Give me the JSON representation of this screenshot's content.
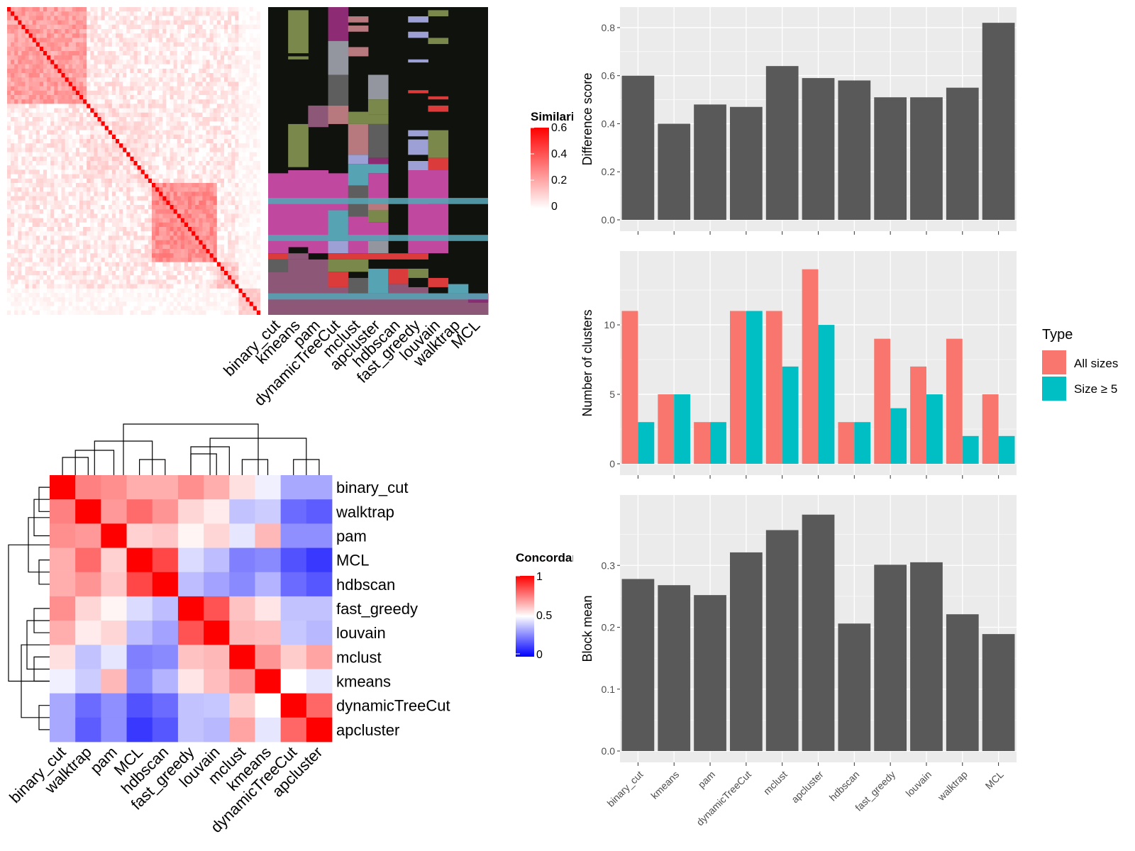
{
  "colors": {
    "panel_bg": "#ebebeb",
    "grid": "#ffffff",
    "bar": "#595959",
    "all_sizes": "#f8766d",
    "size_ge5": "#00bfc4",
    "sim_high": "#ff0000",
    "sim_low": "#ffffff",
    "conc_high": "#ff0000",
    "conc_mid": "#ffffff",
    "conc_low": "#0000ff",
    "cluster_bg": "#10120e"
  },
  "similarity_heatmap": {
    "legend_title": "Similarity",
    "legend_ticks": [
      "0.6",
      "0.4",
      "0.2",
      "0"
    ],
    "n": 70
  },
  "cluster_matrix": {
    "methods": [
      "binary_cut",
      "kmeans",
      "pam",
      "dynamicTreeCut",
      "mclust",
      "apcluster",
      "hdbscan",
      "fast_greedy",
      "louvain",
      "walktrap",
      "MCL"
    ],
    "palette": [
      "#c0489e",
      "#7b884b",
      "#8d5877",
      "#dc3b3b",
      "#93959f",
      "#5e5e5e",
      "#9ca0d4",
      "#56a3b4",
      "#b8797e",
      "#67557a",
      "#8d2c74"
    ]
  },
  "concordance_heatmap": {
    "legend_title": "Concordance",
    "legend_ticks": [
      "1",
      "0.5",
      "0"
    ],
    "row_labels": [
      "binary_cut",
      "walktrap",
      "pam",
      "MCL",
      "hdbscan",
      "fast_greedy",
      "louvain",
      "mclust",
      "kmeans",
      "dynamicTreeCut",
      "apcluster"
    ],
    "col_labels": [
      "binary_cut",
      "walktrap",
      "pam",
      "MCL",
      "hdbscan",
      "fast_greedy",
      "louvain",
      "mclust",
      "kmeans",
      "dynamicTreeCut",
      "apcluster"
    ],
    "values": [
      [
        1.0,
        0.75,
        0.72,
        0.66,
        0.66,
        0.72,
        0.66,
        0.56,
        0.47,
        0.33,
        0.33
      ],
      [
        0.75,
        1.0,
        0.7,
        0.79,
        0.71,
        0.58,
        0.54,
        0.38,
        0.4,
        0.21,
        0.18
      ],
      [
        0.72,
        0.7,
        1.0,
        0.59,
        0.61,
        0.52,
        0.58,
        0.45,
        0.64,
        0.28,
        0.28
      ],
      [
        0.66,
        0.79,
        0.59,
        1.0,
        0.86,
        0.43,
        0.37,
        0.25,
        0.27,
        0.16,
        0.11
      ],
      [
        0.66,
        0.71,
        0.61,
        0.86,
        1.0,
        0.37,
        0.32,
        0.27,
        0.35,
        0.21,
        0.17
      ],
      [
        0.72,
        0.58,
        0.52,
        0.43,
        0.37,
        1.0,
        0.84,
        0.62,
        0.55,
        0.38,
        0.38
      ],
      [
        0.66,
        0.54,
        0.58,
        0.37,
        0.32,
        0.84,
        1.0,
        0.64,
        0.63,
        0.39,
        0.36
      ],
      [
        0.56,
        0.38,
        0.45,
        0.25,
        0.27,
        0.62,
        0.64,
        1.0,
        0.71,
        0.6,
        0.68
      ],
      [
        0.47,
        0.4,
        0.64,
        0.27,
        0.35,
        0.55,
        0.63,
        0.71,
        1.0,
        0.5,
        0.45
      ],
      [
        0.33,
        0.21,
        0.28,
        0.16,
        0.21,
        0.38,
        0.39,
        0.6,
        0.5,
        1.0,
        0.8
      ],
      [
        0.33,
        0.18,
        0.28,
        0.11,
        0.17,
        0.38,
        0.36,
        0.68,
        0.45,
        0.8,
        1.0
      ]
    ]
  },
  "chart_data": [
    {
      "type": "bar",
      "categories": [
        "binary_cut",
        "kmeans",
        "pam",
        "dynamicTreeCut",
        "mclust",
        "apcluster",
        "hdbscan",
        "fast_greedy",
        "louvain",
        "walktrap",
        "MCL"
      ],
      "values": [
        0.6,
        0.4,
        0.48,
        0.47,
        0.64,
        0.59,
        0.58,
        0.51,
        0.51,
        0.55,
        0.82
      ],
      "xlabel": "",
      "ylabel": "Difference score",
      "ylim": [
        0,
        0.85
      ],
      "yticks": [
        0.0,
        0.2,
        0.4,
        0.6,
        0.8
      ],
      "ytick_labels": [
        "0.0",
        "0.2",
        "0.4",
        "0.6",
        "0.8"
      ]
    },
    {
      "type": "bar",
      "categories": [
        "binary_cut",
        "kmeans",
        "pam",
        "dynamicTreeCut",
        "mclust",
        "apcluster",
        "hdbscan",
        "fast_greedy",
        "louvain",
        "walktrap",
        "MCL"
      ],
      "series": [
        {
          "name": "All sizes",
          "values": [
            11,
            5,
            3,
            11,
            11,
            14,
            3,
            9,
            7,
            9,
            5
          ]
        },
        {
          "name": "Size ≥ 5",
          "values": [
            3,
            5,
            3,
            11,
            7,
            10,
            3,
            4,
            5,
            2,
            2
          ]
        }
      ],
      "legend_title": "Type",
      "legend_position": "right",
      "xlabel": "",
      "ylabel": "Number of clusters",
      "ylim": [
        0,
        14.7
      ],
      "yticks": [
        0,
        5,
        10
      ],
      "ytick_labels": [
        "0",
        "5",
        "10"
      ]
    },
    {
      "type": "bar",
      "categories": [
        "binary_cut",
        "kmeans",
        "pam",
        "dynamicTreeCut",
        "mclust",
        "apcluster",
        "hdbscan",
        "fast_greedy",
        "louvain",
        "walktrap",
        "MCL"
      ],
      "values": [
        0.278,
        0.268,
        0.252,
        0.321,
        0.357,
        0.382,
        0.206,
        0.301,
        0.305,
        0.221,
        0.189
      ],
      "xlabel": "",
      "ylabel": "Block mean",
      "ylim": [
        0,
        0.4
      ],
      "yticks": [
        0.0,
        0.1,
        0.2,
        0.3
      ],
      "ytick_labels": [
        "0.0",
        "0.1",
        "0.2",
        "0.3"
      ]
    }
  ]
}
